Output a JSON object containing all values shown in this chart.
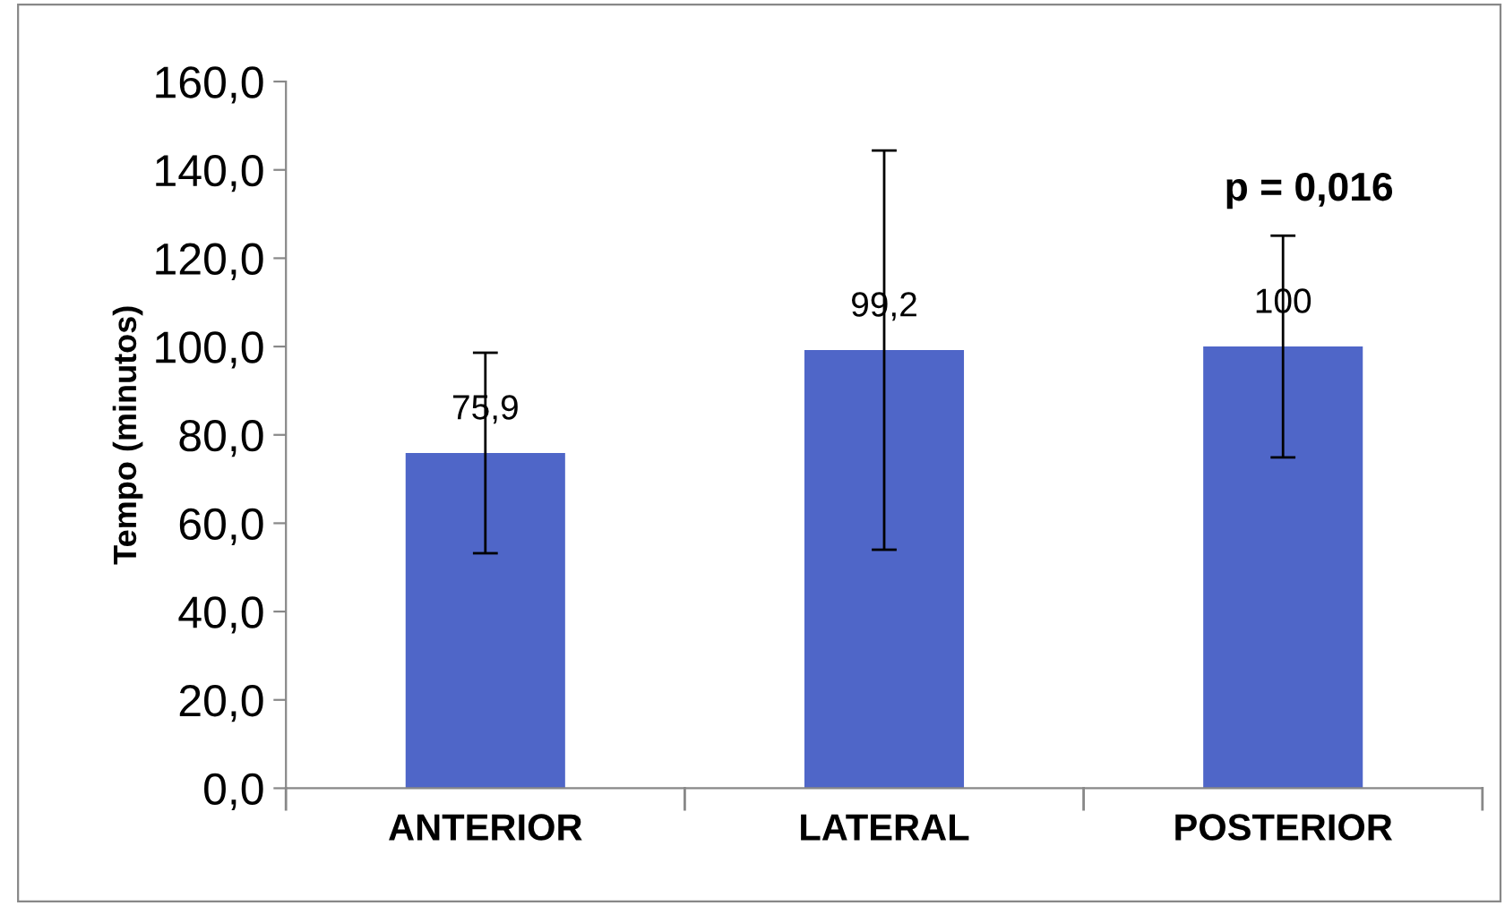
{
  "chart_data": {
    "type": "bar",
    "ylabel": "Tempo (minutos)",
    "categories": [
      "ANTERIOR",
      "LATERAL",
      "POSTERIOR"
    ],
    "values": [
      75.9,
      99.2,
      100
    ],
    "errors": [
      22.7,
      45.2,
      25.1
    ],
    "value_labels": [
      "75,9",
      "99,2",
      "100"
    ],
    "color": "#4f66c8",
    "ylim": [
      0,
      160
    ],
    "yticks": [
      {
        "value": 0,
        "label": "0,0"
      },
      {
        "value": 20,
        "label": "20,0"
      },
      {
        "value": 40,
        "label": "40,0"
      },
      {
        "value": 60,
        "label": "60,0"
      },
      {
        "value": 80,
        "label": "80,0"
      },
      {
        "value": 100,
        "label": "100,0"
      },
      {
        "value": 120,
        "label": "120,0"
      },
      {
        "value": 140,
        "label": "140,0"
      },
      {
        "value": 160,
        "label": "160,0"
      }
    ],
    "annotations": [
      "p = 0,016"
    ],
    "grid": false
  }
}
